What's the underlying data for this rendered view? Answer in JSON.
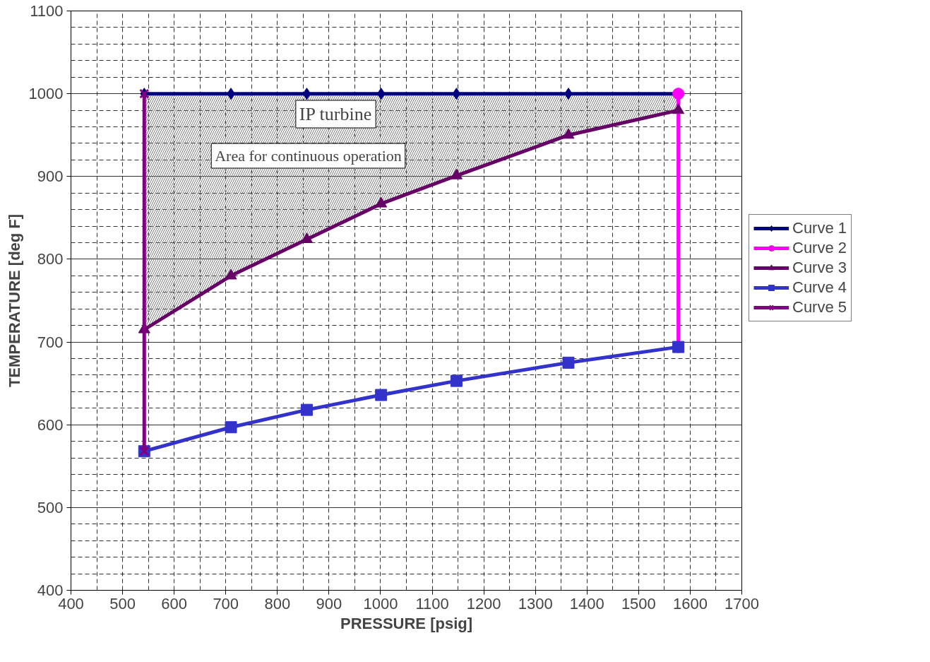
{
  "chart_data": {
    "type": "line",
    "xlabel": "PRESSURE [psig]",
    "ylabel": "TEMPERATURE [deg F]",
    "xlim": [
      400,
      1700
    ],
    "xticks": [
      400,
      500,
      600,
      700,
      800,
      900,
      1000,
      1100,
      1200,
      1300,
      1400,
      1500,
      1600,
      1700
    ],
    "ylim": [
      400,
      1100
    ],
    "yticks": [
      400,
      500,
      600,
      700,
      800,
      900,
      1000,
      1100
    ],
    "grid": true,
    "legend": "right",
    "series": [
      {
        "name": "Curve 1",
        "color": "#000080",
        "marker": "diamond",
        "x": [
          542,
          710,
          857,
          1001,
          1147,
          1364,
          1577
        ],
        "values": [
          1000,
          1000,
          1000,
          1000,
          1000,
          1000,
          1000
        ],
        "lower": [
          715,
          780,
          824,
          867,
          901,
          950,
          980
        ],
        "upper": [
          1000,
          1000,
          1000,
          1000,
          1000,
          1000,
          1000
        ]
      },
      {
        "name": "Curve 2",
        "color": "#ff00ff",
        "marker": "circle",
        "x": [
          1577,
          1577
        ],
        "values": [
          1000,
          694
        ]
      },
      {
        "name": "Curve 3",
        "color": "#660066",
        "marker": "triangle",
        "x": [
          542,
          710,
          857,
          1001,
          1147,
          1364,
          1577
        ],
        "values": [
          715,
          780,
          824,
          867,
          901,
          950,
          980
        ]
      },
      {
        "name": "Curve 4",
        "color": "#3333cc",
        "marker": "square",
        "x": [
          542,
          710,
          857,
          1001,
          1147,
          1364,
          1577
        ],
        "values": [
          568,
          597,
          618,
          636,
          653,
          675,
          694
        ]
      },
      {
        "name": "Curve 5",
        "color": "#800080",
        "marker": "cross",
        "x": [
          542,
          542
        ],
        "values": [
          1000,
          568
        ]
      }
    ],
    "annotations": [
      "IP turbine",
      "Area for continuous operation"
    ]
  }
}
